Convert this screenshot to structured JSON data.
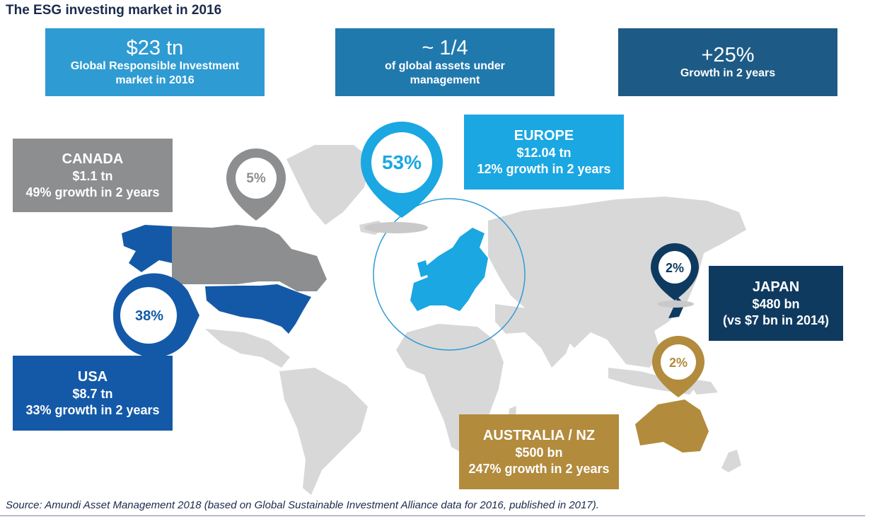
{
  "title": "The ESG investing market in 2016",
  "kpis": [
    {
      "big": "$23 tn",
      "sub": "Global Responsible Investment market in 2016",
      "color": "#2f9bd3"
    },
    {
      "big": "~ 1/4",
      "sub": "of global assets under management",
      "color": "#2079ad"
    },
    {
      "big": "+25%",
      "sub": "Growth in 2 years",
      "color": "#1d5b86"
    }
  ],
  "regions": {
    "canada": {
      "name": "CANADA",
      "amount": "$1.1 tn",
      "growth": "49% growth in 2 years",
      "share": "5%",
      "color": "#8c8e90"
    },
    "europe": {
      "name": "EUROPE",
      "amount": "$12.04 tn",
      "growth": "12% growth in 2 years",
      "share": "53%",
      "color": "#1aa7e2"
    },
    "usa": {
      "name": "USA",
      "amount": "$8.7 tn",
      "growth": "33% growth  in 2 years",
      "share": "38%",
      "color": "#1459a8"
    },
    "japan": {
      "name": "JAPAN",
      "amount": "$480 bn",
      "growth": "(vs $7 bn in 2014)",
      "share": "2%",
      "color": "#0f3a60"
    },
    "australia": {
      "name": "AUSTRALIA / NZ",
      "amount": "$500 bn",
      "growth": "247% growth in 2 years",
      "share": "2%",
      "color": "#b28b3c"
    }
  },
  "map_color": "#d8d8d8",
  "source": "Source: Amundi Asset Management 2018 (based on Global Sustainable Investment Alliance data for 2016, published in 2017)."
}
